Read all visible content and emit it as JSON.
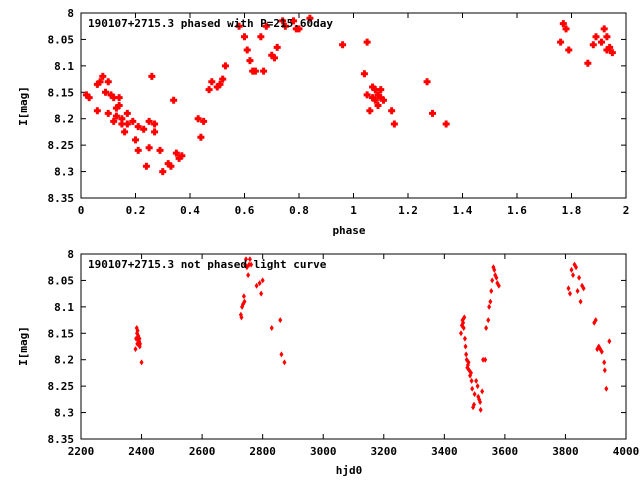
{
  "colors": {
    "points": "#ff0000",
    "axes": "#000000",
    "background": "#ffffff"
  },
  "chart_data": [
    {
      "type": "scatter",
      "title": "190107+2715.3 phased with P=215.60day",
      "xlabel": "phase",
      "ylabel": "I[mag]",
      "xlim": [
        0,
        2
      ],
      "ylim": [
        8,
        8.35
      ],
      "y_inverted": true,
      "grid": false,
      "xticks": [
        "0",
        "0.2",
        "0.4",
        "0.6",
        "0.8",
        "1",
        "1.2",
        "1.4",
        "1.6",
        "1.8",
        "2"
      ],
      "yticks": [
        "8",
        "8.05",
        "8.1",
        "8.15",
        "8.2",
        "8.25",
        "8.3",
        "8.35"
      ],
      "x": [
        0.02,
        0.03,
        0.06,
        0.06,
        0.07,
        0.08,
        0.09,
        0.1,
        0.1,
        0.11,
        0.12,
        0.12,
        0.13,
        0.13,
        0.14,
        0.14,
        0.15,
        0.15,
        0.16,
        0.17,
        0.17,
        0.19,
        0.2,
        0.21,
        0.21,
        0.23,
        0.24,
        0.25,
        0.25,
        0.26,
        0.27,
        0.27,
        0.29,
        0.3,
        0.32,
        0.33,
        0.34,
        0.35,
        0.36,
        0.37,
        0.43,
        0.44,
        0.45,
        0.47,
        0.48,
        0.5,
        0.51,
        0.52,
        0.53,
        0.58,
        0.6,
        0.61,
        0.62,
        0.63,
        0.64,
        0.66,
        0.67,
        0.68,
        0.7,
        0.71,
        0.72,
        0.74,
        0.75,
        0.78,
        0.79,
        0.8,
        0.84,
        0.96,
        1.04,
        1.05,
        1.05,
        1.06,
        1.07,
        1.07,
        1.08,
        1.08,
        1.09,
        1.09,
        1.1,
        1.1,
        1.11,
        1.14,
        1.15,
        1.27,
        1.29,
        1.34,
        1.76,
        1.77,
        1.78,
        1.79,
        1.86,
        1.88,
        1.89,
        1.91,
        1.92,
        1.93,
        1.93,
        1.94,
        1.95
      ],
      "y": [
        8.155,
        8.16,
        8.135,
        8.185,
        8.13,
        8.12,
        8.15,
        8.13,
        8.19,
        8.155,
        8.16,
        8.205,
        8.18,
        8.195,
        8.16,
        8.175,
        8.2,
        8.21,
        8.225,
        8.19,
        8.21,
        8.205,
        8.24,
        8.215,
        8.26,
        8.22,
        8.29,
        8.255,
        8.205,
        8.12,
        8.21,
        8.225,
        8.26,
        8.3,
        8.285,
        8.29,
        8.165,
        8.265,
        8.275,
        8.27,
        8.2,
        8.235,
        8.205,
        8.145,
        8.13,
        8.14,
        8.135,
        8.125,
        8.1,
        8.025,
        8.045,
        8.07,
        8.09,
        8.11,
        8.11,
        8.045,
        8.11,
        8.025,
        8.08,
        8.085,
        8.065,
        8.015,
        8.025,
        8.015,
        8.03,
        8.03,
        8.01,
        8.06,
        8.115,
        8.055,
        8.155,
        8.185,
        8.16,
        8.14,
        8.165,
        8.145,
        8.175,
        8.155,
        8.145,
        8.16,
        8.165,
        8.185,
        8.21,
        8.13,
        8.19,
        8.21,
        8.055,
        8.02,
        8.03,
        8.07,
        8.095,
        8.06,
        8.045,
        8.055,
        8.03,
        8.045,
        8.07,
        8.065,
        8.075
      ]
    },
    {
      "type": "scatter",
      "title": "190107+2715.3 not phased light curve",
      "xlabel": "hjd0",
      "ylabel": "I[mag]",
      "xlim": [
        2200,
        4000
      ],
      "ylim": [
        8,
        8.35
      ],
      "y_inverted": true,
      "grid": false,
      "xticks": [
        "2200",
        "2400",
        "2600",
        "2800",
        "3000",
        "3200",
        "3400",
        "3600",
        "3800",
        "4000"
      ],
      "yticks": [
        "8",
        "8.05",
        "8.1",
        "8.15",
        "8.2",
        "8.25",
        "8.3",
        "8.35"
      ],
      "x": [
        2380,
        2382,
        2384,
        2385,
        2386,
        2387,
        2388,
        2389,
        2390,
        2391,
        2392,
        2393,
        2394,
        2395,
        2400,
        2728,
        2730,
        2732,
        2735,
        2738,
        2740,
        2742,
        2745,
        2748,
        2752,
        2755,
        2758,
        2762,
        2780,
        2790,
        2795,
        2800,
        2830,
        2858,
        2862,
        2872,
        3455,
        3458,
        3460,
        3462,
        3464,
        3466,
        3468,
        3470,
        3472,
        3474,
        3476,
        3478,
        3480,
        3482,
        3485,
        3488,
        3490,
        3492,
        3495,
        3498,
        3500,
        3505,
        3510,
        3512,
        3515,
        3518,
        3520,
        3525,
        3528,
        3535,
        3538,
        3545,
        3548,
        3552,
        3555,
        3558,
        3562,
        3565,
        3568,
        3572,
        3575,
        3580,
        3810,
        3815,
        3820,
        3825,
        3830,
        3835,
        3840,
        3845,
        3850,
        3855,
        3860,
        3895,
        3900,
        3905,
        3910,
        3915,
        3920,
        3928,
        3930,
        3935,
        3945
      ],
      "y": [
        8.18,
        8.16,
        8.14,
        8.15,
        8.17,
        8.145,
        8.16,
        8.155,
        8.165,
        8.17,
        8.165,
        8.16,
        8.175,
        8.17,
        8.205,
        8.115,
        8.12,
        8.1,
        8.095,
        8.08,
        8.09,
        8.02,
        8.01,
        8.025,
        8.04,
        8.02,
        8.01,
        8.02,
        8.06,
        8.055,
        8.075,
        8.05,
        8.14,
        8.125,
        8.19,
        8.205,
        8.15,
        8.135,
        8.125,
        8.13,
        8.14,
        8.12,
        8.16,
        8.175,
        8.19,
        8.2,
        8.215,
        8.21,
        8.205,
        8.22,
        8.23,
        8.225,
        8.24,
        8.255,
        8.29,
        8.285,
        8.265,
        8.24,
        8.25,
        8.27,
        8.275,
        8.28,
        8.295,
        8.26,
        8.2,
        8.2,
        8.14,
        8.125,
        8.1,
        8.09,
        8.07,
        8.05,
        8.025,
        8.03,
        8.04,
        8.045,
        8.055,
        8.06,
        8.065,
        8.075,
        8.03,
        8.04,
        8.02,
        8.025,
        8.07,
        8.045,
        8.09,
        8.06,
        8.065,
        8.13,
        8.125,
        8.18,
        8.175,
        8.18,
        8.185,
        8.205,
        8.22,
        8.255,
        8.165
      ]
    }
  ]
}
